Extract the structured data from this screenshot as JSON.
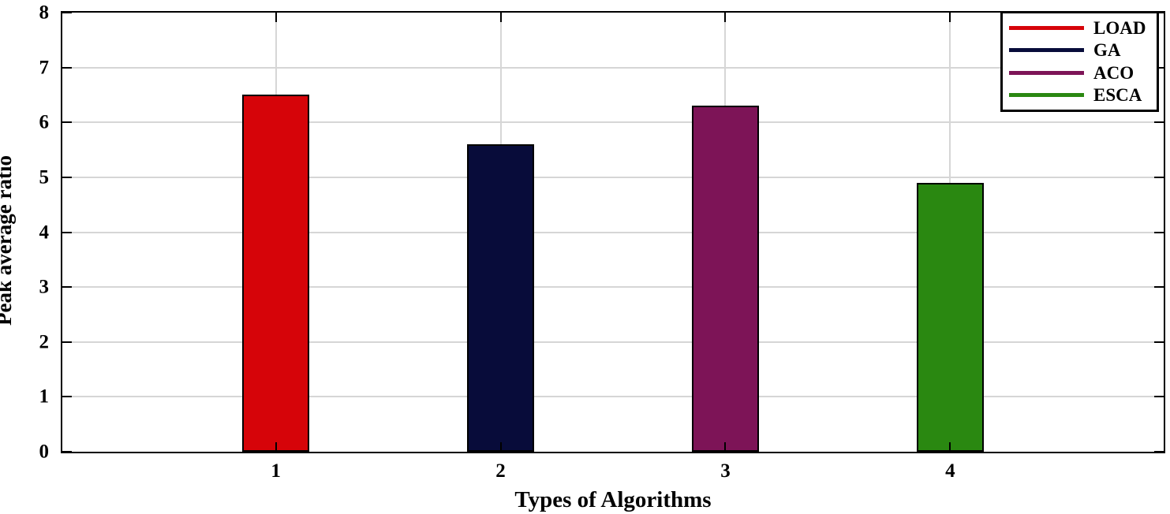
{
  "figure": {
    "xlabel": "Types of Algorithms",
    "ylabel": "Peak average ratio"
  },
  "chart_data": {
    "type": "bar",
    "title": "",
    "xlabel": "Types of Algorithms",
    "ylabel": "Peak average ratio",
    "categories": [
      "1",
      "2",
      "3",
      "4"
    ],
    "series": [
      {
        "name": "LOAD",
        "x": 1,
        "value": 6.5,
        "color": "#d60409"
      },
      {
        "name": "GA",
        "x": 2,
        "value": 5.6,
        "color": "#080c3a"
      },
      {
        "name": "ACO",
        "x": 3,
        "value": 6.3,
        "color": "#7d1457"
      },
      {
        "name": "ESCA",
        "x": 4,
        "value": 4.9,
        "color": "#2a8811"
      }
    ],
    "xlim": [
      0.05,
      4.95
    ],
    "ylim": [
      0,
      8
    ],
    "x_ticks": [
      1,
      2,
      3,
      4
    ],
    "y_ticks": [
      0,
      1,
      2,
      3,
      4,
      5,
      6,
      7,
      8
    ],
    "bar_width_data_units": 0.3,
    "grid": true,
    "grid_color": "#d6d6d6",
    "axis_color": "#000000",
    "legend_position": "top-right",
    "legend_swatch_style": "line"
  }
}
